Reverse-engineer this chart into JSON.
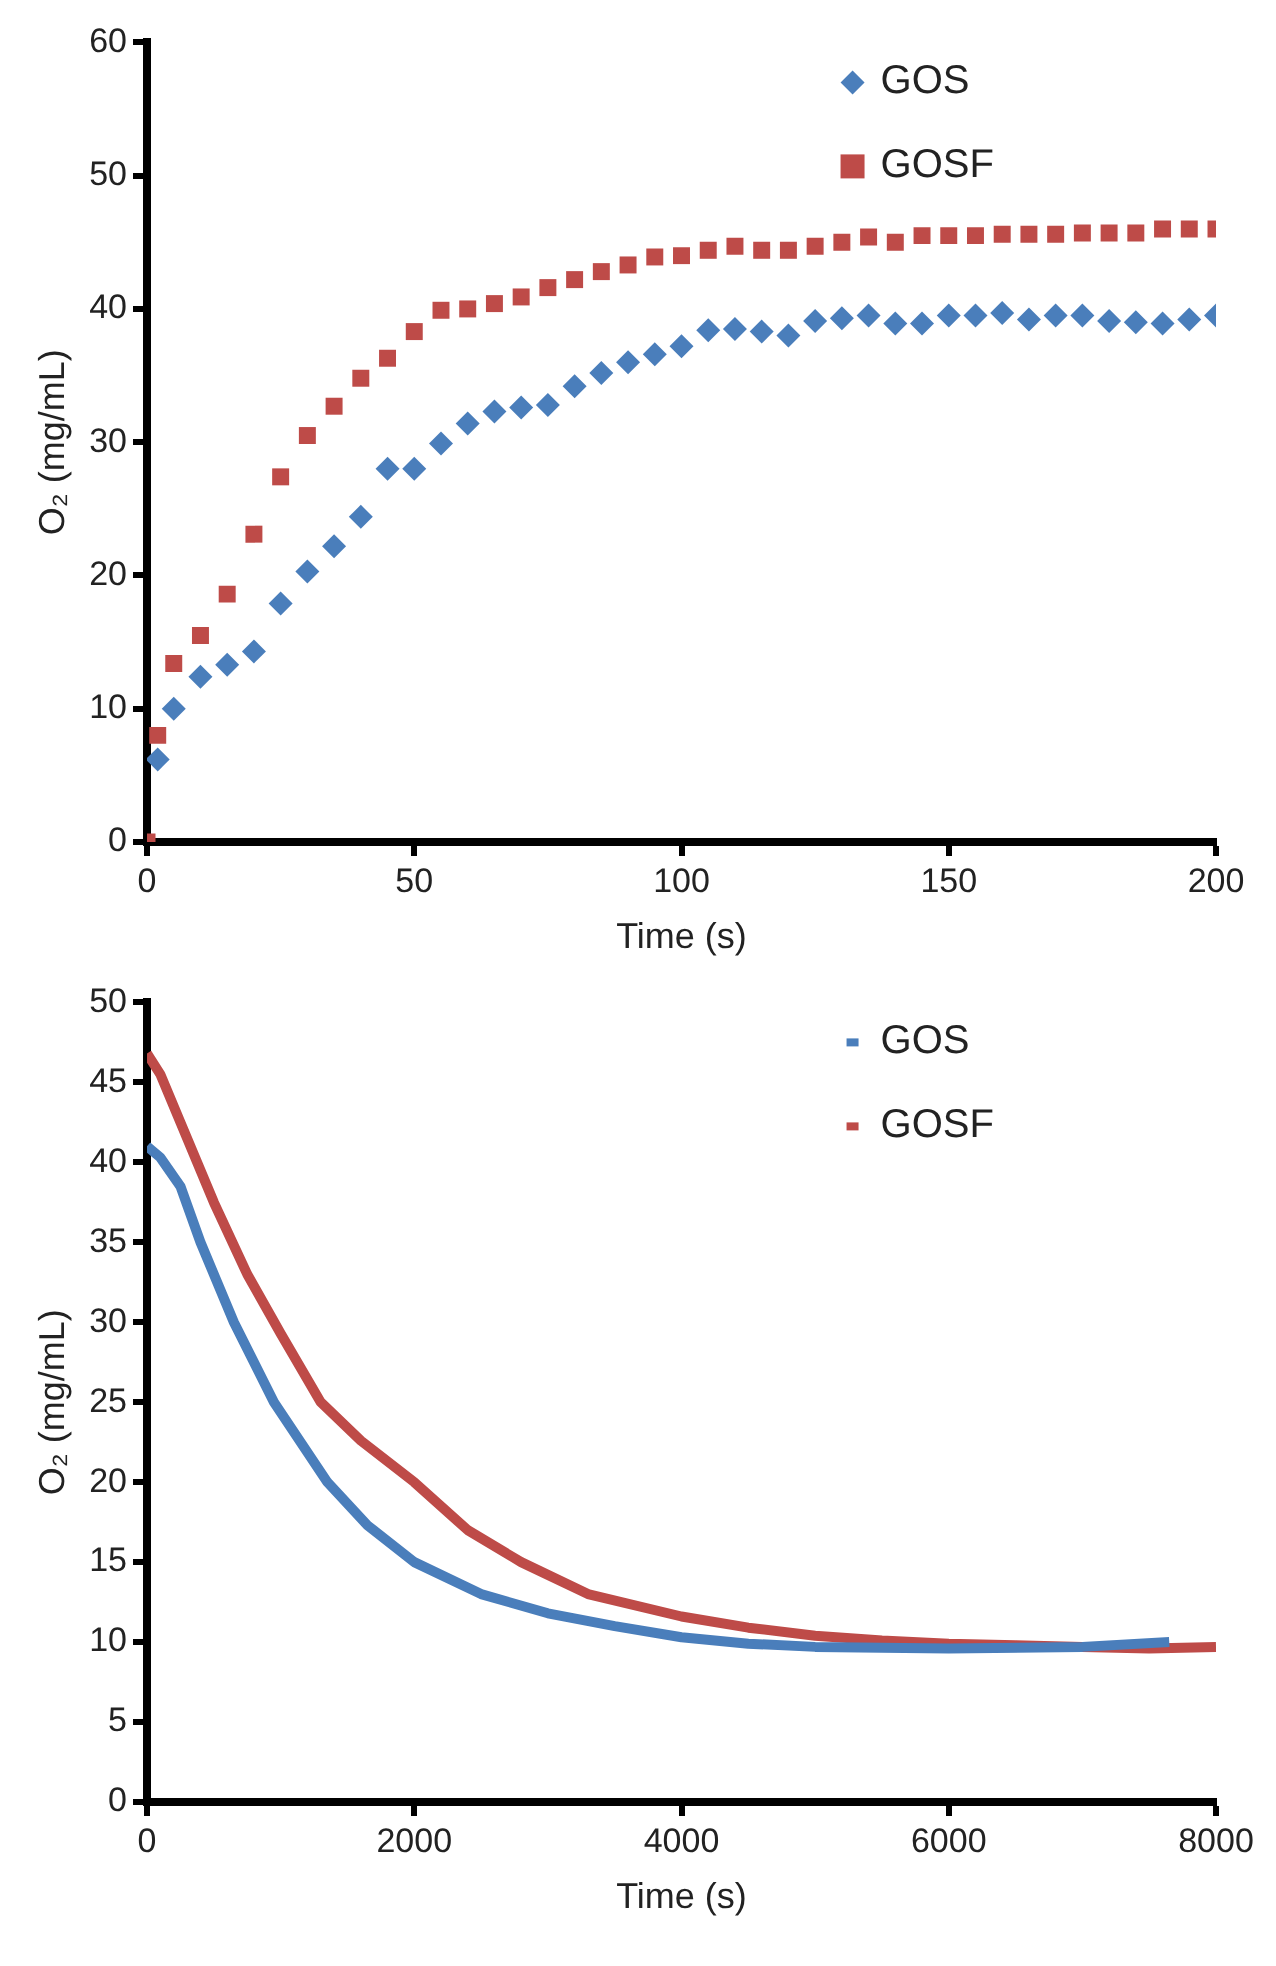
{
  "chart_data": [
    {
      "type": "scatter",
      "xlabel": "Time (s)",
      "ylabel": "O₂ (mg/mL)",
      "xlim": [
        0,
        200
      ],
      "xticks": [
        0,
        50,
        100,
        150,
        200
      ],
      "ylim": [
        0,
        60
      ],
      "yticks": [
        0,
        10,
        20,
        30,
        40,
        50,
        60
      ],
      "grid": false,
      "legend": "top right",
      "series": [
        {
          "name": "GOS",
          "color": "#4a7ebb",
          "marker": "diamond",
          "x": [
            2,
            5,
            10,
            15,
            20,
            25,
            30,
            35,
            40,
            45,
            50,
            55,
            60,
            65,
            70,
            75,
            80,
            85,
            90,
            95,
            100,
            105,
            110,
            115,
            120,
            125,
            130,
            135,
            140,
            145,
            150,
            155,
            160,
            165,
            170,
            175,
            180,
            185,
            190,
            195,
            200
          ],
          "values": [
            6.2,
            10.0,
            12.4,
            13.3,
            14.3,
            17.9,
            20.3,
            22.2,
            24.4,
            28.0,
            28.0,
            29.9,
            31.4,
            32.3,
            32.6,
            32.8,
            34.2,
            35.2,
            36.0,
            36.6,
            37.2,
            38.4,
            38.5,
            38.3,
            38.0,
            39.1,
            39.3,
            39.5,
            38.9,
            38.9,
            39.5,
            39.5,
            39.7,
            39.2,
            39.5,
            39.5,
            39.1,
            39.0,
            38.9,
            39.2,
            39.5
          ]
        },
        {
          "name": "GOSF",
          "color": "#be4b48",
          "marker": "square",
          "x": [
            0,
            2,
            5,
            10,
            15,
            20,
            25,
            30,
            35,
            40,
            45,
            50,
            55,
            60,
            65,
            70,
            75,
            80,
            85,
            90,
            95,
            100,
            105,
            110,
            115,
            120,
            125,
            130,
            135,
            140,
            145,
            150,
            155,
            160,
            165,
            170,
            175,
            180,
            185,
            190,
            195,
            200
          ],
          "values": [
            0,
            8.0,
            13.4,
            15.5,
            18.6,
            23.1,
            27.4,
            30.5,
            32.7,
            34.8,
            36.3,
            38.3,
            39.9,
            40.0,
            40.4,
            40.9,
            41.6,
            42.2,
            42.8,
            43.3,
            43.9,
            44.0,
            44.4,
            44.7,
            44.4,
            44.4,
            44.7,
            45.0,
            45.4,
            45.0,
            45.5,
            45.5,
            45.5,
            45.6,
            45.6,
            45.6,
            45.7,
            45.7,
            45.7,
            46.0,
            46.0,
            46.0
          ]
        }
      ]
    },
    {
      "type": "line",
      "xlabel": "Time (s)",
      "ylabel": "O₂ (mg/mL)",
      "xlim": [
        0,
        8000
      ],
      "xticks": [
        0,
        2000,
        4000,
        6000,
        8000
      ],
      "ylim": [
        0,
        50
      ],
      "yticks": [
        0,
        5,
        10,
        15,
        20,
        25,
        30,
        35,
        40,
        45,
        50
      ],
      "grid": false,
      "legend": "top right",
      "marker": "none",
      "series": [
        {
          "name": "GOS",
          "color": "#4a7ebb",
          "x": [
            0,
            100,
            250,
            400,
            650,
            950,
            1350,
            1650,
            2000,
            2500,
            3000,
            3500,
            4000,
            4500,
            5000,
            6000,
            7000,
            7650
          ],
          "values": [
            41,
            40.3,
            38.5,
            35,
            30,
            25,
            20,
            17.3,
            15,
            13,
            11.8,
            11,
            10.3,
            9.9,
            9.7,
            9.6,
            9.7,
            10
          ]
        },
        {
          "name": "GOSF",
          "color": "#be4b48",
          "x": [
            0,
            100,
            250,
            500,
            750,
            1000,
            1300,
            1600,
            2000,
            2400,
            2800,
            3300,
            4000,
            4500,
            5000,
            5500,
            6000,
            6500,
            7000,
            7500,
            8000
          ],
          "values": [
            46.8,
            45.5,
            42.5,
            37.5,
            33,
            29.3,
            25,
            22.6,
            20,
            17,
            15,
            13,
            11.6,
            10.9,
            10.4,
            10.1,
            9.9,
            9.8,
            9.7,
            9.6,
            9.7
          ]
        }
      ]
    }
  ]
}
